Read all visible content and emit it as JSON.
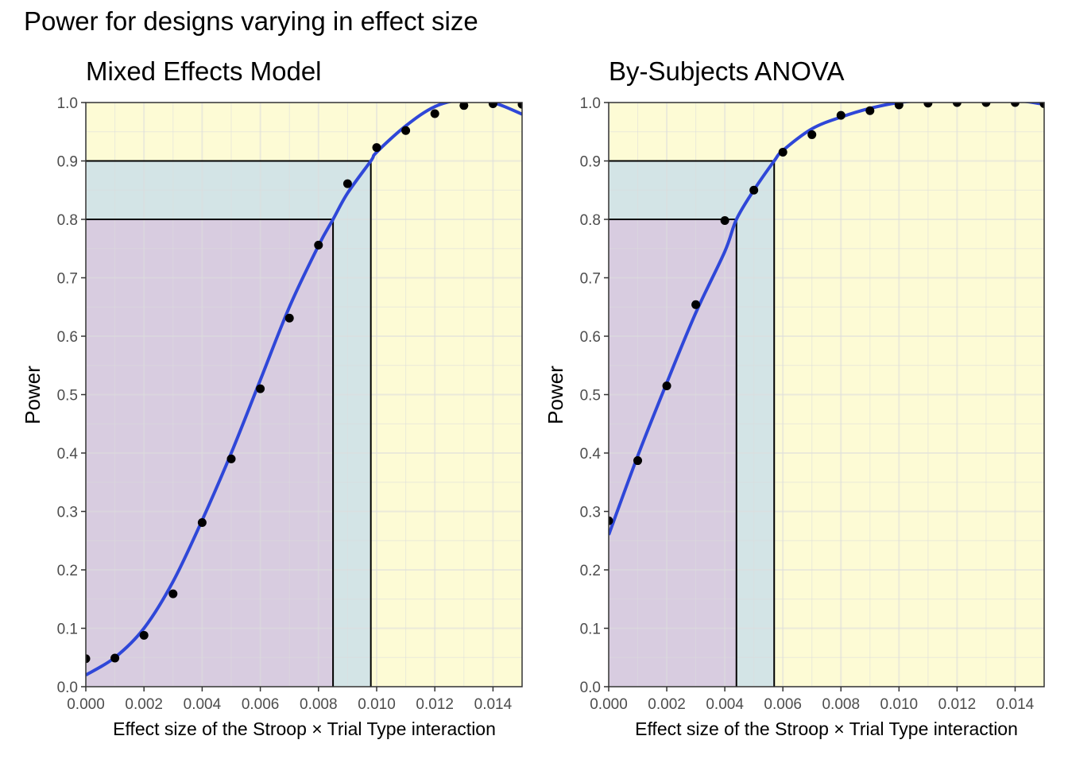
{
  "title": "Power for designs varying in effect size",
  "colors": {
    "zone_low": "#d8cce0",
    "zone_mid": "#d3e4e6",
    "zone_high": "#fdfbd5",
    "grid": "#dcdcdc",
    "curve": "#2f47d8",
    "point": "#000000",
    "reference_line": "#000000"
  },
  "chart_data": [
    {
      "type": "scatter",
      "title": "Mixed Effects Model",
      "xlabel": "Effect size of the Stroop × Trial Type interaction",
      "ylabel": "Power",
      "xlim": [
        0,
        0.015
      ],
      "ylim": [
        0,
        1.0
      ],
      "x_ticks": [
        "0.000",
        "0.002",
        "0.004",
        "0.006",
        "0.008",
        "0.010",
        "0.012",
        "0.014"
      ],
      "y_ticks": [
        "0.0",
        "0.1",
        "0.2",
        "0.3",
        "0.4",
        "0.5",
        "0.6",
        "0.7",
        "0.8",
        "0.9",
        "1.0"
      ],
      "grid": true,
      "points": {
        "x": [
          0.0,
          0.001,
          0.002,
          0.003,
          0.004,
          0.005,
          0.006,
          0.007,
          0.008,
          0.009,
          0.01,
          0.011,
          0.012,
          0.013,
          0.014,
          0.015
        ],
        "y": [
          0.048,
          0.049,
          0.088,
          0.159,
          0.281,
          0.39,
          0.51,
          0.631,
          0.756,
          0.861,
          0.923,
          0.952,
          0.981,
          0.995,
          0.998,
          0.997
        ]
      },
      "fit_curve": {
        "x": [
          0.0,
          0.001,
          0.002,
          0.003,
          0.004,
          0.005,
          0.006,
          0.007,
          0.008,
          0.0085,
          0.009,
          0.0098,
          0.01,
          0.011,
          0.012,
          0.013,
          0.014,
          0.015
        ],
        "y": [
          0.02,
          0.05,
          0.1,
          0.18,
          0.285,
          0.4,
          0.525,
          0.65,
          0.755,
          0.8,
          0.845,
          0.9,
          0.915,
          0.96,
          0.993,
          1.005,
          1.0,
          0.98
        ]
      },
      "thresholds": [
        {
          "power": 0.8,
          "effect_size": 0.0085
        },
        {
          "power": 0.9,
          "effect_size": 0.0098
        }
      ]
    },
    {
      "type": "scatter",
      "title": "By-Subjects ANOVA",
      "xlabel": "Effect size of the Stroop × Trial Type interaction",
      "ylabel": "Power",
      "xlim": [
        0,
        0.015
      ],
      "ylim": [
        0,
        1.0
      ],
      "x_ticks": [
        "0.000",
        "0.002",
        "0.004",
        "0.006",
        "0.008",
        "0.010",
        "0.012",
        "0.014"
      ],
      "y_ticks": [
        "0.0",
        "0.1",
        "0.2",
        "0.3",
        "0.4",
        "0.5",
        "0.6",
        "0.7",
        "0.8",
        "0.9",
        "1.0"
      ],
      "grid": true,
      "points": {
        "x": [
          0.0,
          0.001,
          0.002,
          0.003,
          0.004,
          0.005,
          0.006,
          0.007,
          0.008,
          0.009,
          0.01,
          0.011,
          0.012,
          0.013,
          0.014,
          0.015
        ],
        "y": [
          0.284,
          0.387,
          0.515,
          0.654,
          0.798,
          0.85,
          0.915,
          0.945,
          0.978,
          0.986,
          0.996,
          0.999,
          1.0,
          1.0,
          1.0,
          0.998
        ]
      },
      "fit_curve": {
        "x": [
          0.0,
          0.001,
          0.002,
          0.003,
          0.004,
          0.0044,
          0.005,
          0.0057,
          0.006,
          0.007,
          0.008,
          0.009,
          0.01,
          0.011,
          0.012,
          0.013,
          0.014,
          0.015
        ],
        "y": [
          0.26,
          0.395,
          0.52,
          0.64,
          0.745,
          0.8,
          0.85,
          0.9,
          0.918,
          0.955,
          0.975,
          0.99,
          1.0,
          1.004,
          1.005,
          1.005,
          1.004,
          0.997
        ]
      },
      "thresholds": [
        {
          "power": 0.8,
          "effect_size": 0.0044
        },
        {
          "power": 0.9,
          "effect_size": 0.0057
        }
      ]
    }
  ]
}
